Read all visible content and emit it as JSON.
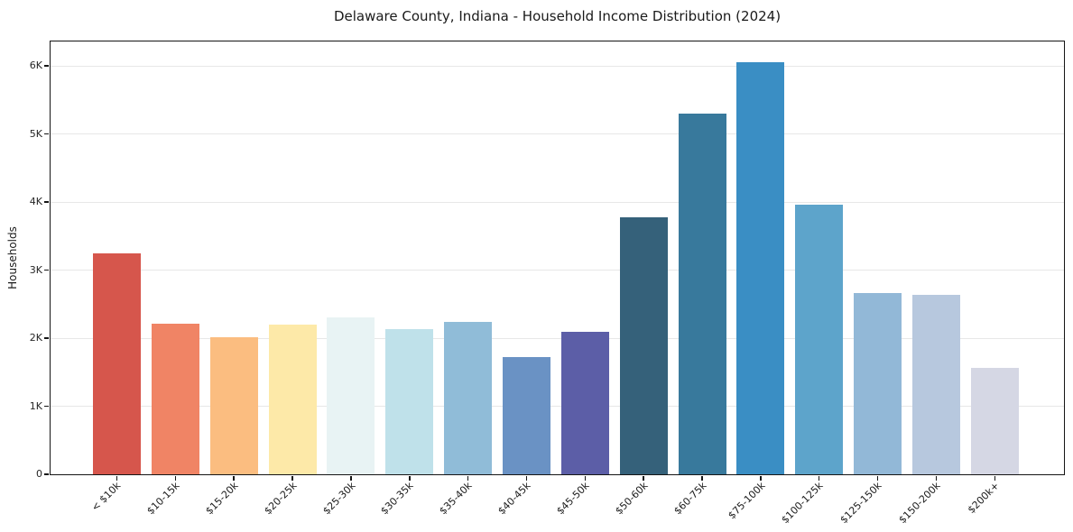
{
  "chart_data": {
    "type": "bar",
    "title": "Delaware County, Indiana - Household Income Distribution (2024)",
    "xlabel": "",
    "ylabel": "Households",
    "categories": [
      "< $10k",
      "$10-15k",
      "$15-20k",
      "$20-25k",
      "$25-30k",
      "$30-35k",
      "$35-40k",
      "$40-45k",
      "$45-50k",
      "$50-60k",
      "$60-75k",
      "$75-100k",
      "$100-125k",
      "$125-150k",
      "$150-200k",
      "$200k+"
    ],
    "values": [
      3240,
      2210,
      2020,
      2200,
      2310,
      2140,
      2240,
      1720,
      2100,
      3770,
      5300,
      6060,
      3960,
      2660,
      2640,
      1560
    ],
    "bar_colors": [
      "#d6564c",
      "#f08465",
      "#fbbd80",
      "#fde9a8",
      "#e8f3f4",
      "#bfe1ea",
      "#90bcd8",
      "#6a92c4",
      "#5c5ea7",
      "#35617a",
      "#38799c",
      "#3a8ec4",
      "#5da4cb",
      "#92b8d7",
      "#b7c8de",
      "#d5d7e4"
    ],
    "ylim": [
      0,
      6360
    ],
    "y_ticks": [
      {
        "value": 0,
        "label": "0"
      },
      {
        "value": 1000,
        "label": "1K"
      },
      {
        "value": 2000,
        "label": "2K"
      },
      {
        "value": 3000,
        "label": "3K"
      },
      {
        "value": 4000,
        "label": "4K"
      },
      {
        "value": 5000,
        "label": "5K"
      },
      {
        "value": 6000,
        "label": "6K"
      }
    ],
    "grid": "horizontal",
    "legend": "none",
    "background": "#ffffff",
    "spine_color": "#151515",
    "grid_color": "#e7e7e7"
  }
}
